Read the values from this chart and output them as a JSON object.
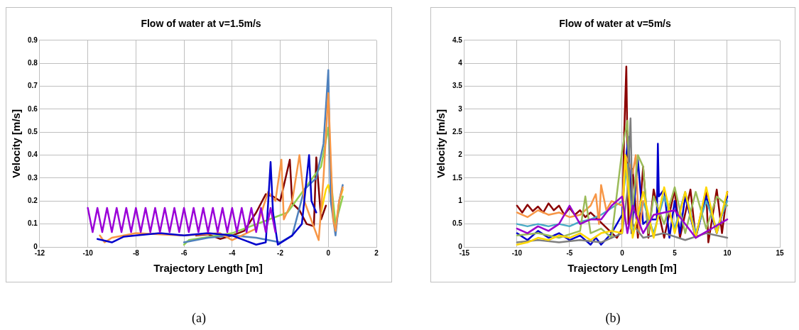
{
  "chart_data": [
    {
      "type": "line",
      "title": "Flow of water at v=1.5m/s",
      "xlabel": "Trajectory Length [m]",
      "ylabel": "Velocity [m/s]",
      "annotations": [
        "(a)"
      ],
      "grid": true,
      "legend": false,
      "xlim": [
        -12,
        2
      ],
      "xticks": [
        -12,
        -10,
        -8,
        -6,
        -4,
        -2,
        0,
        2
      ],
      "ylim": [
        0,
        0.9
      ],
      "yticks": [
        0,
        0.1,
        0.2,
        0.3,
        0.4,
        0.5,
        0.6,
        0.7,
        0.8,
        0.9
      ],
      "series": [
        {
          "color": "#9a00d8",
          "x": [
            -10,
            -9.8,
            -9.6,
            -9.4,
            -9.2,
            -9,
            -8.8,
            -8.6,
            -8.4,
            -8.2,
            -8,
            -7.8,
            -7.6,
            -7.4,
            -7.2,
            -7,
            -6.8,
            -6.6,
            -6.4,
            -6.2,
            -6,
            -5.8,
            -5.6,
            -5.4,
            -5.2,
            -5,
            -4.8,
            -4.6,
            -4.4,
            -4.2,
            -4,
            -3.8,
            -3.6,
            -3.4,
            -3.2,
            -3,
            -2.8,
            -2.6,
            -2.4,
            -2.2
          ],
          "values": [
            0.17,
            0.065,
            0.17,
            0.065,
            0.17,
            0.065,
            0.17,
            0.065,
            0.17,
            0.065,
            0.17,
            0.065,
            0.17,
            0.065,
            0.17,
            0.065,
            0.17,
            0.065,
            0.17,
            0.065,
            0.17,
            0.065,
            0.17,
            0.065,
            0.17,
            0.065,
            0.17,
            0.065,
            0.17,
            0.065,
            0.17,
            0.065,
            0.17,
            0.065,
            0.17,
            0.065,
            0.17,
            0.065,
            0.17,
            0.065
          ]
        },
        {
          "color": "#0000cc",
          "x": [
            -9.6,
            -9,
            -8.5,
            -8,
            -7,
            -6,
            -5,
            -4,
            -3.5,
            -3,
            -2.6,
            -2.4,
            -2.3,
            -2.1,
            -1.5,
            -1.1,
            -0.9,
            -0.8,
            -0.7,
            -0.5
          ],
          "values": [
            0.035,
            0.02,
            0.045,
            0.05,
            0.06,
            0.05,
            0.06,
            0.05,
            0.03,
            0.01,
            0.02,
            0.37,
            0.15,
            0.01,
            0.05,
            0.1,
            0.3,
            0.4,
            0.2,
            0.15
          ]
        },
        {
          "color": "#f79646",
          "x": [
            -9.5,
            -9.3,
            -9,
            -8,
            -6,
            -4.5,
            -4,
            -3,
            -2.5,
            -2.2,
            -1.95,
            -1.85,
            -1.5,
            -1.2,
            -1,
            -0.4,
            -0.2,
            0,
            0.2,
            0.3,
            0.45,
            0.6
          ],
          "values": [
            0.05,
            0.02,
            0.04,
            0.06,
            0.05,
            0.06,
            0.03,
            0.08,
            0.24,
            0.2,
            0.38,
            0.12,
            0.2,
            0.4,
            0.2,
            0.03,
            0.3,
            0.67,
            0.12,
            0.07,
            0.2,
            0.26
          ]
        },
        {
          "color": "#4f81bd",
          "x": [
            -6,
            -5,
            -4,
            -3,
            -2,
            -1.5,
            -1,
            -0.5,
            -0.2,
            0,
            0.1,
            0.3,
            0.45,
            0.6
          ],
          "values": [
            0.02,
            0.04,
            0.05,
            0.04,
            0.02,
            0.05,
            0.25,
            0.3,
            0.45,
            0.77,
            0.2,
            0.05,
            0.2,
            0.27
          ]
        },
        {
          "color": "#92d050",
          "x": [
            -6,
            -5.8,
            -4,
            -1.7,
            -0.8,
            -0.3,
            0,
            0.15,
            0.3,
            0.6
          ],
          "values": [
            0.01,
            0.03,
            0.06,
            0.15,
            0.28,
            0.35,
            0.52,
            0.25,
            0.1,
            0.22
          ]
        },
        {
          "color": "#ffd700",
          "x": [
            -0.3,
            -0.1,
            0,
            0.15,
            0.3,
            0.45,
            0.6
          ],
          "values": [
            0.15,
            0.25,
            0.27,
            0.2,
            0.08,
            0.2,
            0.25
          ]
        },
        {
          "color": "#800000",
          "x": [
            -5.5,
            -5,
            -4.5,
            -4,
            -3.5,
            -3,
            -2.6,
            -2.3,
            -2,
            -1.6,
            -1.5,
            -1.2,
            -0.9,
            -0.6,
            -0.5,
            -0.3,
            -0.1
          ],
          "values": [
            0.05,
            0.055,
            0.035,
            0.05,
            0.07,
            0.15,
            0.23,
            0.22,
            0.2,
            0.38,
            0.19,
            0.16,
            0.1,
            0.09,
            0.39,
            0.12,
            0.18
          ]
        }
      ]
    },
    {
      "type": "line",
      "title": "Flow of water at v=5m/s",
      "xlabel": "Trajectory Length [m]",
      "ylabel": "Velocity [m/s]",
      "annotations": [
        "(b)"
      ],
      "grid": true,
      "legend": false,
      "xlim": [
        -15,
        15
      ],
      "xticks": [
        -15,
        -10,
        -5,
        0,
        5,
        10,
        15
      ],
      "ylim": [
        0,
        4.5
      ],
      "yticks": [
        0,
        0.5,
        1,
        1.5,
        2,
        2.5,
        3,
        3.5,
        4,
        4.5
      ],
      "series": [
        {
          "color": "#9900cc",
          "x": [
            -10,
            -9,
            -8,
            -7,
            -6,
            -5,
            -4,
            -3,
            -2,
            -1,
            0,
            0.5,
            1,
            2,
            3,
            5,
            7,
            10
          ],
          "values": [
            0.4,
            0.3,
            0.45,
            0.35,
            0.5,
            0.9,
            0.5,
            0.6,
            0.6,
            0.9,
            1.1,
            0.3,
            0.9,
            0.3,
            0.7,
            0.8,
            0.2,
            0.6
          ]
        },
        {
          "color": "#ffd700",
          "x": [
            -10,
            -9,
            -8,
            -7,
            -6,
            -5,
            -4,
            -3,
            -2,
            -1,
            0,
            0.3,
            1,
            2,
            3,
            4,
            5,
            6,
            7,
            8,
            9,
            10
          ],
          "values": [
            0.05,
            0.1,
            0.2,
            0.15,
            0.25,
            0.2,
            0.3,
            0.15,
            0.3,
            0.35,
            0.3,
            2.0,
            0.2,
            1.2,
            0.2,
            1.3,
            0.3,
            1.2,
            0.2,
            1.3,
            0.3,
            1.2
          ]
        },
        {
          "color": "#7f7f7f",
          "x": [
            -10,
            -8,
            -6,
            -4,
            -2,
            0,
            0.5,
            0.8,
            1,
            2,
            4,
            6,
            8,
            10
          ],
          "values": [
            0.1,
            0.15,
            0.1,
            0.15,
            0.1,
            0.3,
            1.2,
            2.8,
            0.5,
            0.2,
            0.3,
            0.15,
            0.3,
            0.2
          ]
        },
        {
          "color": "#9bbb59",
          "x": [
            -10,
            -8,
            -6,
            -4,
            -3.5,
            -3,
            -2,
            -1,
            0,
            0.5,
            0.8,
            1.5,
            2,
            2.5,
            3,
            4,
            5,
            6,
            7,
            8,
            9,
            10
          ],
          "values": [
            0.25,
            0.3,
            0.2,
            0.35,
            1.1,
            0.3,
            0.4,
            0.2,
            2.1,
            2.75,
            0.4,
            2.0,
            1.75,
            0.3,
            1.1,
            0.5,
            1.3,
            0.3,
            1.2,
            0.4,
            1.1,
            0.9
          ]
        },
        {
          "color": "#f79646",
          "x": [
            -10,
            -9,
            -8,
            -7,
            -6,
            -5,
            -4,
            -3,
            -2.5,
            -2.2,
            -2,
            -1.5,
            -1,
            0,
            0.3,
            0.7,
            1,
            1.3,
            1.6,
            2
          ],
          "values": [
            0.75,
            0.65,
            0.8,
            0.7,
            0.75,
            0.65,
            0.7,
            0.9,
            1.15,
            0.5,
            1.35,
            0.8,
            1.0,
            0.9,
            2.0,
            1.8,
            1.6,
            2.0,
            0.3,
            1.0
          ]
        },
        {
          "color": "#4bacc6",
          "x": [
            -10,
            -9,
            -8,
            -7,
            -6,
            -5,
            -4,
            -3,
            -2,
            -1,
            -0.3,
            0,
            0.5,
            1,
            2,
            3,
            4,
            5,
            6,
            7,
            8,
            9,
            10
          ],
          "values": [
            0.5,
            0.45,
            0.5,
            0.45,
            0.5,
            0.45,
            0.55,
            0.6,
            0.7,
            0.85,
            0.95,
            1.0,
            1.8,
            0.3,
            1.0,
            0.3,
            1.1,
            0.4,
            1.2,
            0.3,
            1.0,
            0.4,
            1.0
          ]
        },
        {
          "color": "#0000cc",
          "x": [
            -10,
            -9,
            -8,
            -7,
            -6,
            -5,
            -4,
            -3,
            -2.5,
            -2,
            -1,
            0,
            0.3,
            0.6,
            0.9,
            1.5,
            2,
            2.5,
            3.3,
            3.4,
            3.5,
            4,
            4.5,
            5,
            5.5,
            6,
            7,
            8,
            9,
            10
          ],
          "values": [
            0.3,
            0.15,
            0.35,
            0.2,
            0.3,
            0.15,
            0.25,
            0.05,
            0.2,
            0.05,
            0.3,
            0.7,
            1.8,
            2.4,
            0.3,
            1.9,
            0.5,
            0.6,
            0.6,
            2.25,
            1.1,
            1.25,
            0.2,
            1.0,
            0.3,
            1.1,
            0.2,
            1.1,
            0.3,
            1.1
          ]
        },
        {
          "color": "#8b0000",
          "x": [
            -10,
            -9.5,
            -9,
            -8.5,
            -8,
            -7.5,
            -7,
            -6.5,
            -6,
            -5.5,
            -5,
            -4.5,
            -4,
            -3.5,
            -3,
            -0.5,
            0,
            0.2,
            0.4,
            0.6,
            1,
            1.5,
            2,
            2.5,
            3,
            4,
            5,
            5.5,
            6.5,
            7,
            8,
            8.2,
            9,
            9.5,
            10
          ],
          "values": [
            0.9,
            0.75,
            0.92,
            0.78,
            0.88,
            0.75,
            0.95,
            0.8,
            0.9,
            0.7,
            0.85,
            0.7,
            0.8,
            0.65,
            0.75,
            0.2,
            0.4,
            2.5,
            3.93,
            0.5,
            1.7,
            0.2,
            1.75,
            0.2,
            1.25,
            0.2,
            1.25,
            0.2,
            1.25,
            0.2,
            1.25,
            0.1,
            1.25,
            0.3,
            1.2
          ]
        }
      ]
    }
  ]
}
